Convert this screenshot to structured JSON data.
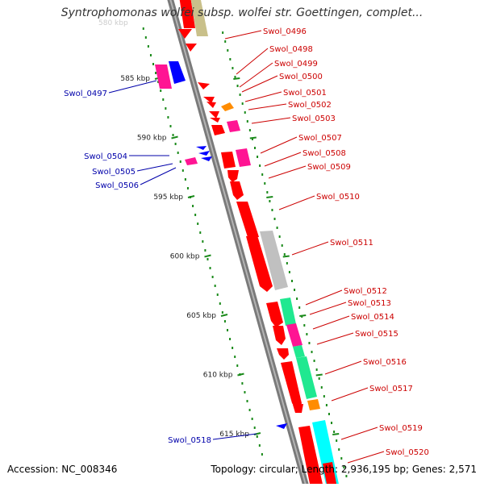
{
  "title": "Syntrophomonas wolfei subsp. wolfei str. Goettingen, complet...",
  "accession": "Accession: NC_008346",
  "topology": "Topology: circular; Length: 2,936,195 bp; Genes: 2,571",
  "faded_label": "580 kbp",
  "colors": {
    "red": "#ff0000",
    "magenta": "#ff1493",
    "blue": "#0000ff",
    "orange": "#ff8c00",
    "green": "#20e890",
    "cyan": "#00ffff",
    "gray": "#c0c0c0",
    "olive": "#c9c08a",
    "label_red": "#cc0000",
    "label_blue": "#0000aa",
    "dot_green": "#1a8a1a"
  },
  "kbp_ticks": [
    {
      "kbp": 585,
      "label": "585 kbp"
    },
    {
      "kbp": 590,
      "label": "590 kbp"
    },
    {
      "kbp": 595,
      "label": "595 kbp"
    },
    {
      "kbp": 600,
      "label": "600 kbp"
    },
    {
      "kbp": 605,
      "label": "605 kbp"
    },
    {
      "kbp": 610,
      "label": "610 kbp"
    },
    {
      "kbp": 615,
      "label": "615 kbp"
    }
  ],
  "gene_labels": [
    {
      "name": "Swol_0496",
      "side": "right"
    },
    {
      "name": "Swol_0497",
      "side": "left"
    },
    {
      "name": "Swol_0498",
      "side": "right"
    },
    {
      "name": "Swol_0499",
      "side": "right"
    },
    {
      "name": "Swol_0500",
      "side": "right"
    },
    {
      "name": "Swol_0501",
      "side": "right"
    },
    {
      "name": "Swol_0502",
      "side": "right"
    },
    {
      "name": "Swol_0503",
      "side": "right"
    },
    {
      "name": "Swol_0504",
      "side": "left"
    },
    {
      "name": "Swol_0505",
      "side": "left"
    },
    {
      "name": "Swol_0506",
      "side": "left"
    },
    {
      "name": "Swol_0507",
      "side": "right"
    },
    {
      "name": "Swol_0508",
      "side": "right"
    },
    {
      "name": "Swol_0509",
      "side": "right"
    },
    {
      "name": "Swol_0510",
      "side": "right"
    },
    {
      "name": "Swol_0511",
      "side": "right"
    },
    {
      "name": "Swol_0512",
      "side": "right"
    },
    {
      "name": "Swol_0513",
      "side": "right"
    },
    {
      "name": "Swol_0514",
      "side": "right"
    },
    {
      "name": "Swol_0515",
      "side": "right"
    },
    {
      "name": "Swol_0516",
      "side": "right"
    },
    {
      "name": "Swol_0517",
      "side": "right"
    },
    {
      "name": "Swol_0518",
      "side": "left"
    },
    {
      "name": "Swol_0519",
      "side": "right"
    },
    {
      "name": "Swol_0520",
      "side": "right"
    }
  ]
}
